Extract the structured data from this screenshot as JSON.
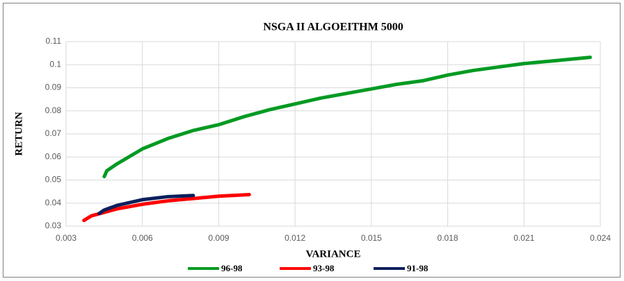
{
  "chart_data": {
    "type": "line",
    "title": "NSGA II ALGOEITHM 5000",
    "xlabel": "VARIANCE",
    "ylabel": "RETURN",
    "xlim": [
      0.003,
      0.024
    ],
    "xticks": [
      0.003,
      0.006,
      0.009,
      0.012,
      0.015,
      0.018,
      0.021,
      0.024
    ],
    "ylim": [
      0.03,
      0.11
    ],
    "yticks": [
      0.03,
      0.04,
      0.05,
      0.06,
      0.07,
      0.08,
      0.09,
      0.1,
      0.11
    ],
    "grid": true,
    "legend": "bottom",
    "series": [
      {
        "name": "96-98",
        "color": "#009a22",
        "x": [
          0.0045,
          0.0046,
          0.005,
          0.006,
          0.007,
          0.008,
          0.009,
          0.01,
          0.011,
          0.012,
          0.013,
          0.014,
          0.015,
          0.016,
          0.017,
          0.018,
          0.019,
          0.02,
          0.021,
          0.022,
          0.0236
        ],
        "values": [
          0.0515,
          0.054,
          0.057,
          0.0635,
          0.068,
          0.0715,
          0.074,
          0.0775,
          0.0805,
          0.083,
          0.0855,
          0.0875,
          0.0895,
          0.0915,
          0.093,
          0.0955,
          0.0975,
          0.099,
          0.1005,
          0.1015,
          0.1032
        ]
      },
      {
        "name": "93-98",
        "color": "#ff0000",
        "x": [
          0.0037,
          0.004,
          0.005,
          0.006,
          0.007,
          0.008,
          0.009,
          0.0102
        ],
        "values": [
          0.0325,
          0.0345,
          0.0375,
          0.0395,
          0.041,
          0.042,
          0.043,
          0.0437
        ]
      },
      {
        "name": "91-98",
        "color": "#0c1f5c",
        "x": [
          0.0043,
          0.0045,
          0.005,
          0.006,
          0.007,
          0.008
        ],
        "values": [
          0.0355,
          0.037,
          0.039,
          0.0415,
          0.0428,
          0.0433
        ]
      }
    ]
  }
}
